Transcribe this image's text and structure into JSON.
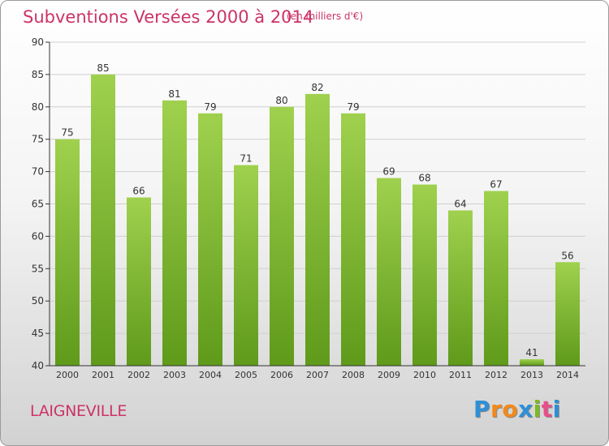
{
  "header": {
    "title": "Subventions Versées 2000 à 2014",
    "subtitle": "(en milliers d'€)"
  },
  "footer": {
    "commune": "LAIGNEVILLE",
    "logo_text": "Proxiti"
  },
  "colors": {
    "title": "#cc3366",
    "bar_top": "#9fd14e",
    "bar_bottom": "#5f9a1a",
    "axis": "#333333"
  },
  "chart_data": {
    "type": "bar",
    "title": "Subventions Versées 2000 à 2014",
    "subtitle": "(en milliers d'€)",
    "categories": [
      "2000",
      "2001",
      "2002",
      "2003",
      "2004",
      "2005",
      "2006",
      "2007",
      "2008",
      "2009",
      "2010",
      "2011",
      "2012",
      "2013",
      "2014"
    ],
    "values": [
      75,
      85,
      66,
      81,
      79,
      71,
      80,
      82,
      79,
      69,
      68,
      64,
      67,
      41,
      56
    ],
    "ylim": [
      40,
      90
    ],
    "yticks": [
      40,
      45,
      50,
      55,
      60,
      65,
      70,
      75,
      80,
      85,
      90
    ],
    "xlabel": "",
    "ylabel": "",
    "grid": true,
    "data_labels": true
  }
}
